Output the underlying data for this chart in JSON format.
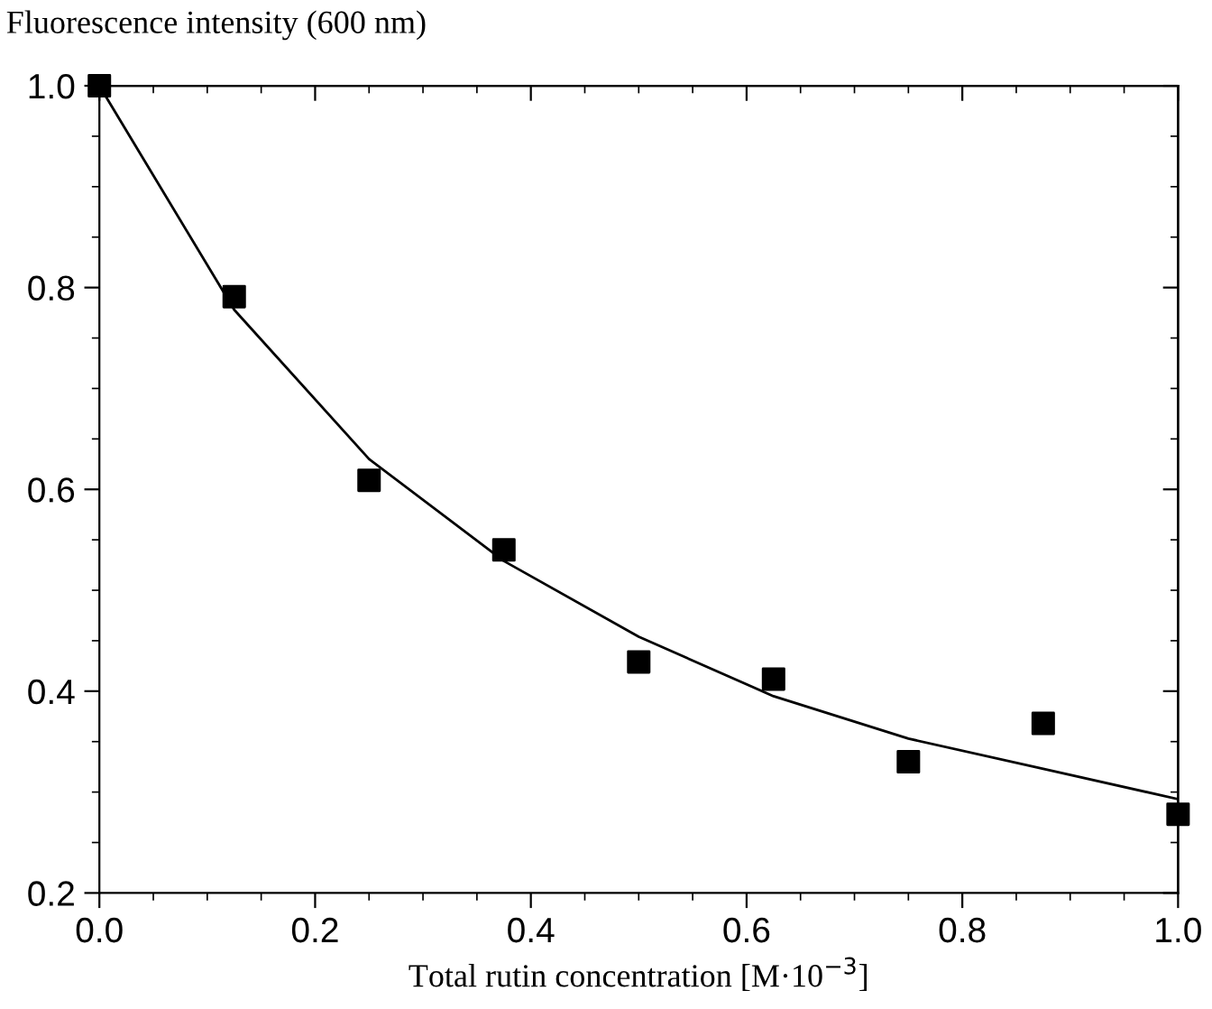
{
  "chart_data": {
    "type": "scatter",
    "ylabel": "Fluorescence intensity (600 nm)",
    "xlabel": "Total rutin concentration [M·10$^{−3}$]",
    "series": [
      {
        "color": "#000000",
        "marker": "square",
        "x": [
          0,
          0.125,
          0.25,
          0.375,
          0.5,
          0.625,
          0.75,
          0.875,
          1.0
        ],
        "values": [
          1.0,
          0.791,
          0.609,
          0.54,
          0.429,
          0.412,
          0.33,
          0.368,
          0.278
        ]
      },
      {
        "type": "line",
        "color": "#000000",
        "marker": "none",
        "line_style": "solid",
        "x": [
          0,
          0.125,
          0.25,
          0.375,
          0.5,
          0.625,
          0.75,
          0.875,
          1.0
        ],
        "values": [
          1.0,
          0.778,
          0.63,
          0.529,
          0.454,
          0.395,
          0.353,
          0.323,
          0.293
        ]
      }
    ],
    "xlim": [
      0,
      1.0
    ],
    "xticks": [
      {
        "value": 0,
        "label": "0.0"
      },
      0.2,
      0.4,
      0.6,
      0.8,
      {
        "value": 1,
        "label": "1.0"
      }
    ],
    "ylim": [
      0.2,
      1.0
    ],
    "yticks": [
      0.2,
      0.4,
      0.6,
      0.8,
      {
        "value": 1,
        "label": "1.0"
      }
    ],
    "grid": false,
    "legend": false
  }
}
